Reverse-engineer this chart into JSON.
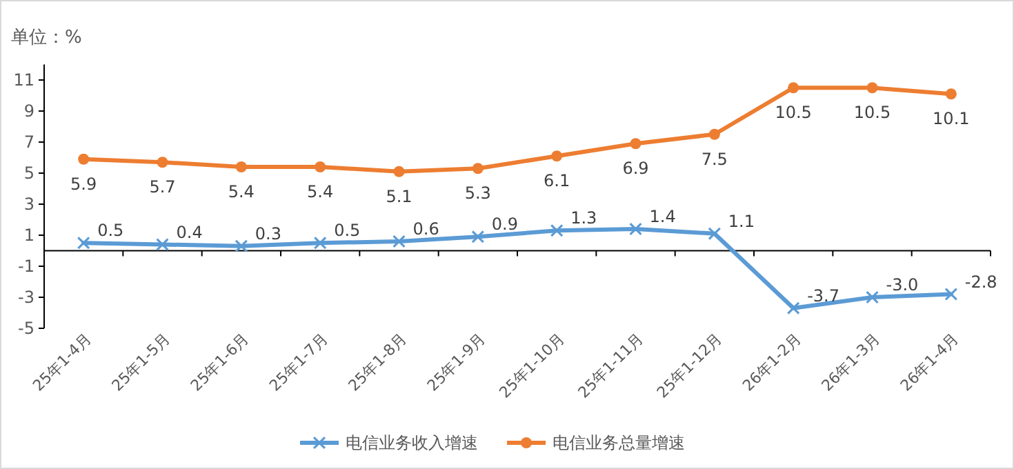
{
  "chart_data": {
    "type": "line",
    "title": "单位：%",
    "categories": [
      "25年1-4月",
      "25年1-5月",
      "25年1-6月",
      "25年1-7月",
      "25年1-8月",
      "25年1-9月",
      "25年1-10月",
      "25年1-11月",
      "25年1-12月",
      "26年1-2月",
      "26年1-3月",
      "26年1-4月"
    ],
    "series": [
      {
        "name": "电信业务收入增速",
        "color": "#5b9bd5",
        "marker": "cross",
        "values": [
          0.5,
          0.4,
          0.3,
          0.5,
          0.6,
          0.9,
          1.3,
          1.4,
          1.1,
          -3.7,
          -3.0,
          -2.8
        ],
        "value_labels": [
          "0.5",
          "0.4",
          "0.3",
          "0.5",
          "0.6",
          "0.9",
          "1.3",
          "1.4",
          "1.1",
          "-3.7",
          "-3.0",
          "-2.8"
        ]
      },
      {
        "name": "电信业务总量增速",
        "color": "#ed7d31",
        "marker": "circle",
        "values": [
          5.9,
          5.7,
          5.4,
          5.4,
          5.1,
          5.3,
          6.1,
          6.9,
          7.5,
          10.5,
          10.5,
          10.1
        ],
        "value_labels": [
          "5.9",
          "5.7",
          "5.4",
          "5.4",
          "5.1",
          "5.3",
          "6.1",
          "6.9",
          "7.5",
          "10.5",
          "10.5",
          "10.1"
        ]
      }
    ],
    "ylim": [
      -5,
      12
    ],
    "yticks": [
      -5,
      -3,
      -1,
      1,
      3,
      5,
      7,
      9,
      11
    ],
    "legend": "bottom",
    "grid": false
  }
}
